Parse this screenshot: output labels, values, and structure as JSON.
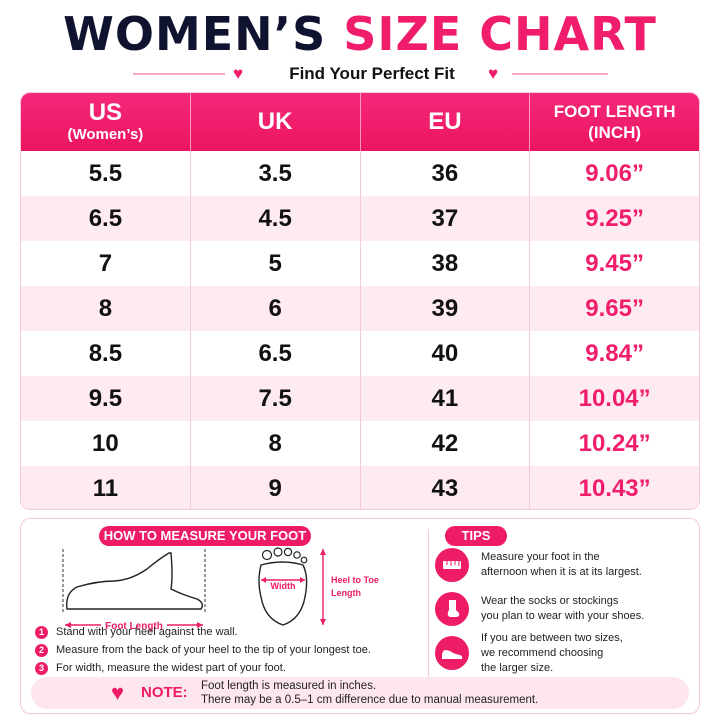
{
  "header": {
    "title_part1": "WOMEN’S",
    "title_part2": "SIZE CHART",
    "subtitle": "Find Your Perfect Fit"
  },
  "table": {
    "columns": [
      {
        "main": "US",
        "sub": "(Women’s)"
      },
      {
        "main": "UK",
        "sub": ""
      },
      {
        "main": "EU",
        "sub": ""
      },
      {
        "main": "FOOT LENGTH",
        "sub": "(INCH)"
      }
    ],
    "rows": [
      [
        "5.5",
        "3.5",
        "36",
        "9.06”"
      ],
      [
        "6.5",
        "4.5",
        "37",
        "9.25”"
      ],
      [
        "7",
        "5",
        "38",
        "9.45”"
      ],
      [
        "8",
        "6",
        "39",
        "9.65”"
      ],
      [
        "8.5",
        "6.5",
        "40",
        "9.84”"
      ],
      [
        "9.5",
        "7.5",
        "41",
        "10.04”"
      ],
      [
        "10",
        "8",
        "42",
        "10.24”"
      ],
      [
        "11",
        "9",
        "43",
        "10.43”"
      ]
    ]
  },
  "measure": {
    "title": "HOW TO MEASURE YOUR FOOT",
    "foot_length_label": "Foot Length",
    "width_label": "Width",
    "heel_to_toe_label_1": "Heel to Toe",
    "heel_to_toe_label_2": "Length",
    "steps": [
      {
        "num": "1",
        "text": "Stand with your heel against the wall."
      },
      {
        "num": "2",
        "text": "Measure from the back of your heel to the tip of your longest toe."
      },
      {
        "num": "3",
        "text": "For width, measure the widest part of your foot."
      }
    ]
  },
  "tips": {
    "title": "TIPS",
    "items": [
      {
        "icon": "ruler-icon",
        "text": "Measure your foot in the\nafternoon when it is at its largest."
      },
      {
        "icon": "sock-icon",
        "text": "Wear the socks or stockings\nyou plan to wear with your shoes."
      },
      {
        "icon": "shoe-icon",
        "text": "If you are between two sizes,\nwe recommend choosing\nthe larger size."
      }
    ]
  },
  "note": {
    "label": "NOTE:",
    "text": "Foot length is measured in inches.\nThere may be a 0.5–1 cm difference due to manual measurement."
  },
  "colors": {
    "accent": "#ee1b66",
    "navy": "#0f1330",
    "row_alt": "#fdebf1"
  }
}
